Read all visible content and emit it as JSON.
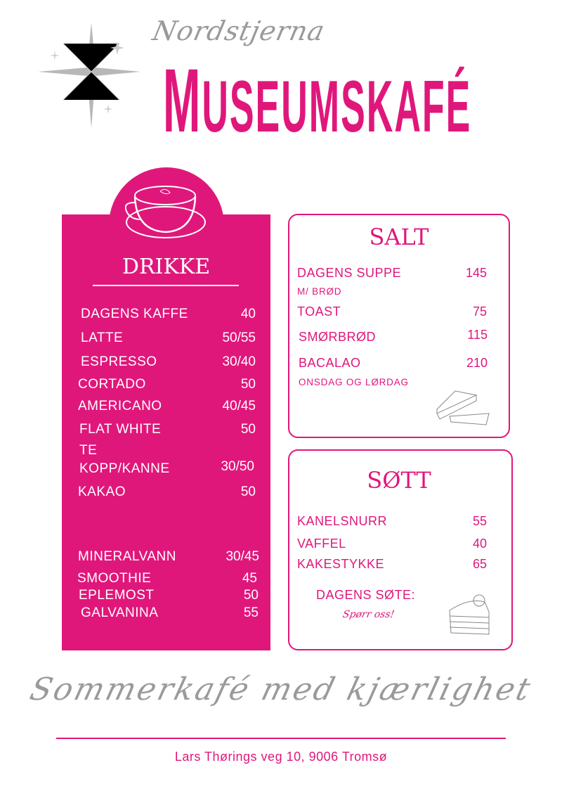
{
  "header": {
    "subtitle": "Nordstjerna",
    "title_first": "M",
    "title_rest": "USEUMSKAFÉ",
    "star_icon": "sparkle-star"
  },
  "drinks": {
    "heading": "DRIKKE",
    "icon": "coffee-cup",
    "items": [
      {
        "name": "DAGENS KAFFE",
        "price": "40"
      },
      {
        "name": "LATTE",
        "price": "50/55"
      },
      {
        "name": "ESPRESSO",
        "price": "30/40"
      },
      {
        "name": "CORTADO",
        "price": "50"
      },
      {
        "name": "AMERICANO",
        "price": "40/45"
      },
      {
        "name": "FLAT WHITE",
        "price": "50"
      },
      {
        "name": "TE",
        "price": ""
      },
      {
        "name": "KOPP/KANNE",
        "price": "30/50"
      },
      {
        "name": "KAKAO",
        "price": "50"
      },
      {
        "name": "MINERALVANN",
        "price": "30/45"
      },
      {
        "name": "SMOOTHIE",
        "price": "45"
      },
      {
        "name": "EPLEMOST",
        "price": "50"
      },
      {
        "name": "GALVANINA",
        "price": "55"
      }
    ]
  },
  "salt": {
    "heading": "SALT",
    "icon": "sandwich",
    "items": [
      {
        "name": "DAGENS SUPPE",
        "price": "145",
        "note": "M/ BRØD"
      },
      {
        "name": "TOAST",
        "price": "75"
      },
      {
        "name": "SMØRBRØD",
        "price": "115"
      },
      {
        "name": "BACALAO",
        "price": "210",
        "note": "ONSDAG OG LØRDAG"
      }
    ]
  },
  "sweet": {
    "heading": "SØTT",
    "icon": "cake-slice",
    "items": [
      {
        "name": "KANELSNURR",
        "price": "55"
      },
      {
        "name": "VAFFEL",
        "price": "40"
      },
      {
        "name": "KAKESTYKKE",
        "price": "65"
      }
    ],
    "daily_label": "DAGENS SØTE:",
    "daily_note": "Spørr oss!"
  },
  "footer": {
    "tagline": "Sommerkafé med kjærlighet",
    "address": "Lars Thørings veg 10, 9006 Tromsø"
  },
  "colors": {
    "accent": "#e0177b",
    "grey": "#9a9a9a"
  }
}
